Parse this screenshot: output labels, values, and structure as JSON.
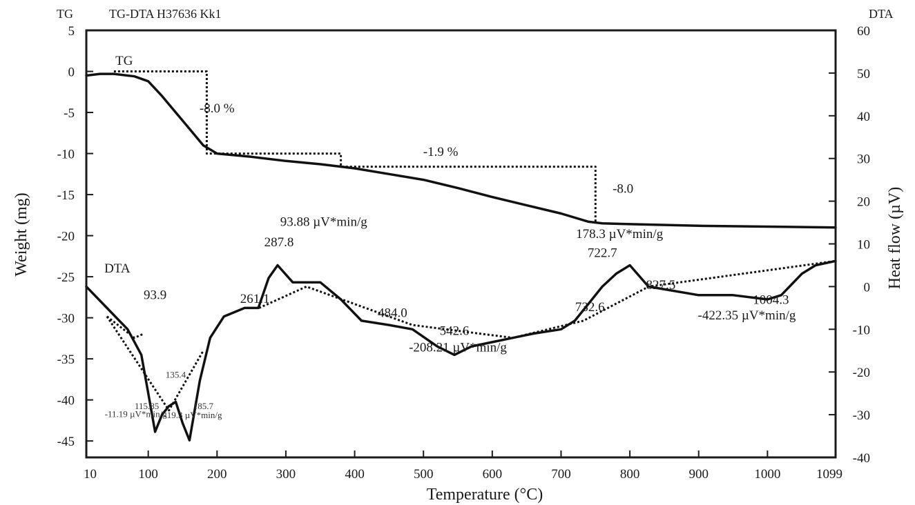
{
  "header": {
    "left_axis_label": "TG",
    "title": "TG-DTA H37636 Kk1",
    "right_axis_label": "DTA"
  },
  "axes": {
    "xlabel": "Temperature (°C)",
    "ylabel_left": "Weight (mg)",
    "ylabel_right": "Heat flow (µV)",
    "x_ticks": [
      "10",
      "100",
      "200",
      "300",
      "400",
      "500",
      "600",
      "700",
      "800",
      "900",
      "1000",
      "1099"
    ],
    "y_left_ticks": [
      "5",
      "0",
      "-5",
      "-10",
      "-15",
      "-20",
      "-25",
      "-30",
      "-35",
      "-40",
      "-45"
    ],
    "y_right_ticks": [
      "60",
      "50",
      "40",
      "30",
      "20",
      "10",
      "0",
      "-10",
      "-20",
      "-30",
      "-40"
    ]
  },
  "chart_data": {
    "type": "line",
    "title": "TG-DTA H37636 Kk1",
    "xlabel": "Temperature (°C)",
    "ylabel": "Weight (mg)",
    "ylabel_right": "Heat flow (µV)",
    "xlim": [
      10,
      1099
    ],
    "ylim": [
      -47,
      5
    ],
    "ylim_right": [
      -40,
      60
    ],
    "grid": false,
    "series": [
      {
        "name": "TG",
        "axis": "left",
        "style": "solid",
        "x": [
          10,
          30,
          50,
          80,
          100,
          120,
          140,
          160,
          180,
          200,
          250,
          300,
          350,
          400,
          450,
          500,
          550,
          600,
          650,
          700,
          740,
          760,
          800,
          900,
          1000,
          1099
        ],
        "y": [
          -0.5,
          -0.3,
          -0.3,
          -0.6,
          -1.2,
          -3.0,
          -5.0,
          -7.0,
          -9.0,
          -10.0,
          -10.4,
          -10.9,
          -11.3,
          -11.8,
          -12.5,
          -13.2,
          -14.2,
          -15.3,
          -16.3,
          -17.3,
          -18.3,
          -18.5,
          -18.6,
          -18.8,
          -18.9,
          -19.0
        ]
      },
      {
        "name": "TG step construction",
        "axis": "left",
        "style": "dotted",
        "x": [
          50,
          185,
          185,
          380,
          380,
          750,
          750
        ],
        "y": [
          0,
          0,
          -10.0,
          -10.0,
          -11.6,
          -11.6,
          -18.3
        ]
      },
      {
        "name": "DTA",
        "axis": "right",
        "style": "solid",
        "x": [
          10,
          40,
          70,
          90,
          100,
          110,
          120,
          130,
          140,
          150,
          160,
          175,
          190,
          210,
          240,
          260,
          275,
          288,
          310,
          350,
          380,
          410,
          450,
          484,
          520,
          545,
          570,
          600,
          630,
          660,
          700,
          720,
          740,
          760,
          780,
          800,
          827,
          900,
          950,
          1000,
          1020,
          1050,
          1070,
          1099
        ],
        "y": [
          0,
          -5,
          -10,
          -16,
          -25,
          -34,
          -30,
          -28,
          -27,
          -32,
          -36,
          -22,
          -12,
          -7,
          -5,
          -5,
          2,
          5,
          1,
          1,
          -3,
          -8,
          -9,
          -10,
          -14,
          -16,
          -14,
          -13,
          -12,
          -11,
          -10,
          -8,
          -4,
          0,
          3,
          5,
          0,
          -2,
          -2,
          -3,
          -2,
          3,
          5,
          6
        ]
      },
      {
        "name": "DTA baselines",
        "axis": "right",
        "style": "dotted",
        "segments": [
          {
            "x": [
              40,
              80,
              93.9
            ],
            "y": [
              -7,
              -12,
              -11
            ]
          },
          {
            "x": [
              40,
              130,
              180
            ],
            "y": [
              -7,
              -29,
              -15
            ]
          },
          {
            "x": [
              261.1,
              330,
              484,
              630
            ],
            "y": [
              -5,
              0,
              -9,
              -12
            ]
          },
          {
            "x": [
              630,
              732.6,
              827.5,
              1099
            ],
            "y": [
              -12,
              -8,
              0,
              6
            ]
          }
        ]
      }
    ],
    "annotations": [
      {
        "text": "TG",
        "x": 65,
        "y": 0.8
      },
      {
        "text": "-8.0 %",
        "x": 200,
        "y": -5
      },
      {
        "text": "-1.9 %",
        "x": 525,
        "y": -10.3
      },
      {
        "text": "-8.0",
        "x": 790,
        "y": -14.8
      },
      {
        "text": "DTA",
        "x": 55,
        "y": -24.5
      },
      {
        "text": "93.9",
        "x": 110,
        "y": -27.7
      },
      {
        "text": "93.88 µV*min/g",
        "x": 355,
        "y": -18.8
      },
      {
        "text": "287.8",
        "x": 290,
        "y": -21.3
      },
      {
        "text": "261.1",
        "x": 255,
        "y": -28.2
      },
      {
        "text": "484.0",
        "x": 455,
        "y": -29.9
      },
      {
        "text": "542.6",
        "x": 545,
        "y": -32.1
      },
      {
        "text": "-208.21 µV*min/g",
        "x": 550,
        "y": -34.1
      },
      {
        "text": "178.3 µV*min/g",
        "x": 785,
        "y": -20.3
      },
      {
        "text": "722.7",
        "x": 760,
        "y": -22.6
      },
      {
        "text": "732.6",
        "x": 742,
        "y": -29.2
      },
      {
        "text": "827.5",
        "x": 845,
        "y": -26.5
      },
      {
        "text": "1004.3",
        "x": 1005,
        "y": -28.3
      },
      {
        "text": "-422.35 µV*min/g",
        "x": 970,
        "y": -30.2
      },
      {
        "text": "135.4",
        "x": 140,
        "y": -37.3,
        "size": "small"
      },
      {
        "text": "115.85",
        "x": 98,
        "y": -41.1,
        "size": "small"
      },
      {
        "text": "-11.19 µV*min/g",
        "x": 82,
        "y": -42.1,
        "size": "small"
      },
      {
        "text": "185.7",
        "x": 180,
        "y": -41.1,
        "size": "small"
      },
      {
        "text": "-19.3 µV*min/g",
        "x": 165,
        "y": -42.2,
        "size": "small"
      }
    ]
  }
}
